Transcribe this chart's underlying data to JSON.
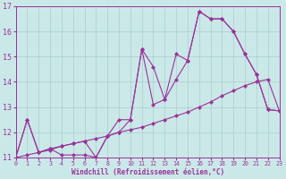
{
  "xlabel": "Windchill (Refroidissement éolien,°C)",
  "xlim": [
    0,
    23
  ],
  "ylim": [
    11,
    17
  ],
  "yticks": [
    11,
    12,
    13,
    14,
    15,
    16,
    17
  ],
  "xticks": [
    0,
    1,
    2,
    3,
    4,
    5,
    6,
    7,
    8,
    9,
    10,
    11,
    12,
    13,
    14,
    15,
    16,
    17,
    18,
    19,
    20,
    21,
    22,
    23
  ],
  "bg_color": "#cbe8e8",
  "line_color": "#993399",
  "grid_color": "#aacccc",
  "series1_x": [
    0,
    1,
    2,
    3,
    4,
    5,
    6,
    7,
    8,
    9,
    10,
    11,
    12,
    13,
    14,
    15,
    16,
    17,
    18,
    19,
    20,
    21,
    22,
    23
  ],
  "series1_y": [
    11.0,
    12.5,
    11.2,
    11.35,
    11.1,
    11.1,
    11.1,
    11.0,
    11.85,
    12.0,
    12.5,
    15.3,
    13.1,
    13.3,
    14.1,
    14.85,
    16.8,
    16.5,
    16.5,
    16.0,
    15.1,
    14.3,
    12.9,
    12.85
  ],
  "series2_x": [
    0,
    1,
    2,
    3,
    4,
    5,
    6,
    7,
    8,
    9,
    10,
    11,
    12,
    13,
    14,
    15,
    16,
    17,
    18,
    19,
    20,
    21,
    22,
    23
  ],
  "series2_y": [
    11.0,
    11.1,
    11.2,
    11.3,
    11.45,
    11.55,
    11.65,
    11.75,
    11.85,
    12.0,
    12.1,
    12.2,
    12.35,
    12.5,
    12.65,
    12.8,
    13.0,
    13.2,
    13.45,
    13.65,
    13.85,
    14.0,
    14.1,
    12.85
  ],
  "series3_x": [
    0,
    1,
    2,
    3,
    4,
    5,
    6,
    7,
    8,
    9,
    10,
    11,
    12,
    13,
    14,
    15,
    16,
    17,
    18,
    19,
    20,
    21,
    22,
    23
  ],
  "series3_y": [
    11.0,
    12.5,
    11.2,
    11.35,
    11.45,
    11.55,
    11.65,
    11.0,
    11.85,
    12.5,
    12.5,
    15.3,
    14.6,
    13.3,
    15.1,
    14.85,
    16.8,
    16.5,
    16.5,
    16.0,
    15.1,
    14.3,
    12.9,
    12.85
  ]
}
